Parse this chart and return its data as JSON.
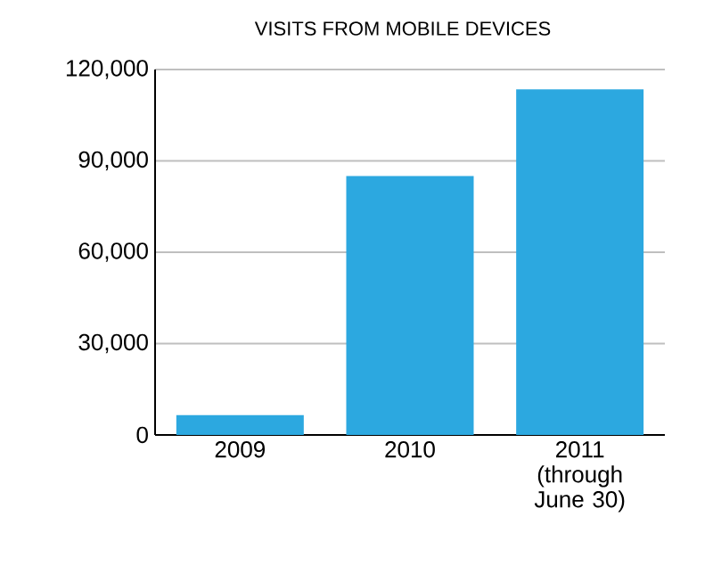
{
  "chart_data": {
    "type": "bar",
    "title": "VISITS FROM MOBILE DEVICES",
    "categories": [
      "2009",
      "2010",
      "2011 (through June 30)"
    ],
    "values": [
      6500,
      85000,
      113500
    ],
    "color": "#2ca8e0",
    "ylim": [
      0,
      120000
    ],
    "yticks": [
      {
        "value": 0,
        "label": "0"
      },
      {
        "value": 30000,
        "label": "30,000"
      },
      {
        "value": 60000,
        "label": "60,000"
      },
      {
        "value": 90000,
        "label": "90,000"
      },
      {
        "value": 120000,
        "label": "120,000"
      }
    ],
    "grid": "y"
  }
}
